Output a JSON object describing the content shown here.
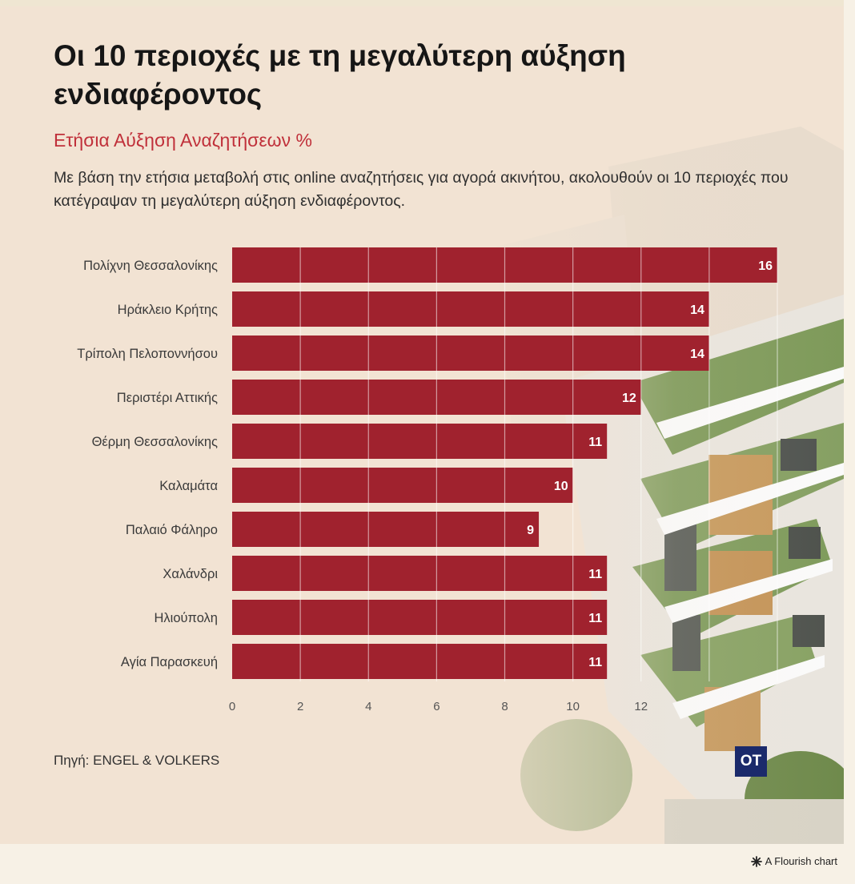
{
  "header": {
    "title": "Οι 10 περιοχές με τη μεγαλύτερη αύξηση ενδιαφέροντος",
    "subtitle": "Ετήσια Αύξηση Αναζητήσεων %",
    "description": "Με βάση την ετήσια μεταβολή στις online αναζητήσεις για αγορά ακινήτου, ακολουθούν οι 10 περιοχές που κατέγραψαν τη μεγαλύτερη αύξηση ενδιαφέροντος."
  },
  "footer": {
    "source": "Πηγή: ENGEL & VOLKERS",
    "logo_text": "OT",
    "flourish_label": "A Flourish chart",
    "flourish_icon": "flourish-star-icon"
  },
  "colors": {
    "bar": "#a0222e",
    "label_text": "#ffffff",
    "category_text": "#3a3a3a",
    "axis_text": "#555555",
    "gridline": "#ffffff"
  },
  "chart_data": {
    "type": "bar",
    "orientation": "horizontal",
    "categories": [
      "Πολίχνη Θεσσαλονίκης",
      "Ηράκλειο Κρήτης",
      "Τρίπολη Πελοποννήσου",
      "Περιστέρι Αττικής",
      "Θέρμη Θεσσαλονίκης",
      "Καλαμάτα",
      "Παλαιό Φάληρο",
      "Χαλάνδρι",
      "Ηλιούπολη",
      "Αγία Παρασκευή"
    ],
    "values": [
      16,
      14,
      14,
      12,
      11,
      10,
      9,
      11,
      11,
      11
    ],
    "xlim": [
      0,
      16
    ],
    "xticks": [
      0,
      2,
      4,
      6,
      8,
      10,
      12
    ],
    "grid": true,
    "data_labels": true
  }
}
